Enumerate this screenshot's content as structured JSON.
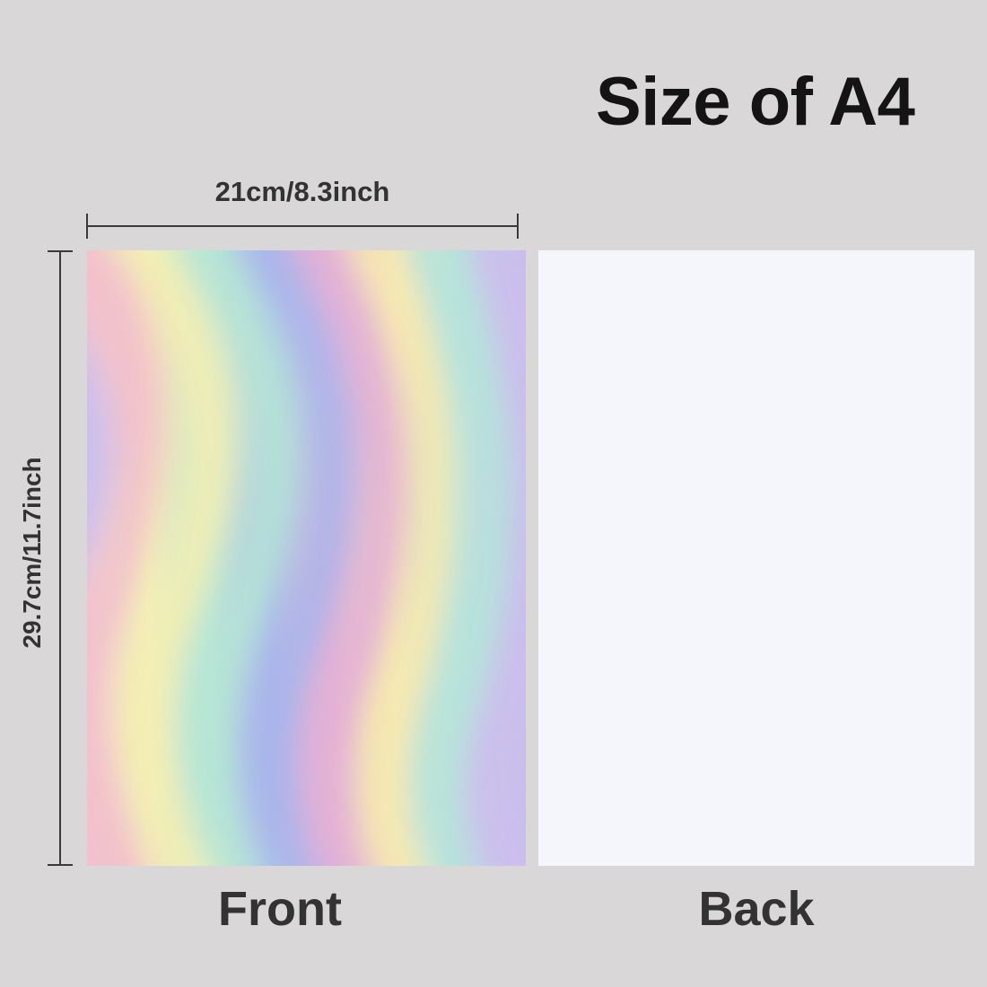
{
  "title": "Size of A4",
  "dimensions": {
    "width_label": "21cm/8.3inch",
    "height_label": "29.7cm/11.7inch"
  },
  "sheets": {
    "front_label": "Front",
    "back_label": "Back"
  },
  "colors": {
    "background": "#d9d7d8",
    "text": "#333333",
    "back_sheet": "#f5f6fb",
    "holographic": [
      "#f2c4c8",
      "#f4f0b4",
      "#b6e4d4",
      "#a9b6ea",
      "#d8b0d8"
    ]
  }
}
